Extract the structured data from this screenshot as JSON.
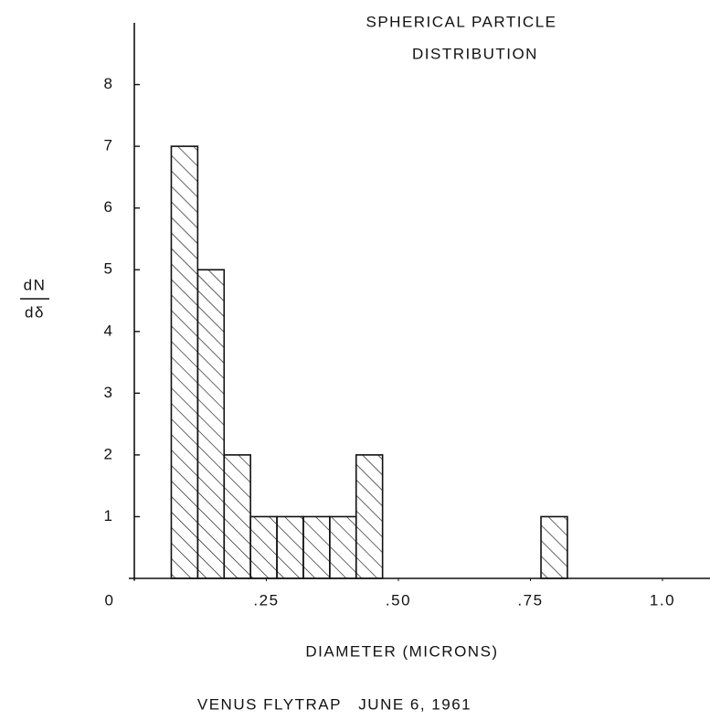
{
  "chart_data": {
    "type": "histogram",
    "title": [
      "SPHERICAL PARTICLE",
      "DISTRIBUTION"
    ],
    "ylabel": {
      "numerator": "dN",
      "denominator": "dδ"
    },
    "xlabel": "DIAMETER (MICRONS)",
    "caption": "VENUS FLYTRAP   JUNE 6, 1961",
    "bins": [
      0.07,
      0.12,
      0.17,
      0.22,
      0.27,
      0.32,
      0.37,
      0.42,
      0.47,
      0.52,
      0.57,
      0.62,
      0.67,
      0.72,
      0.77,
      0.82
    ],
    "values": [
      7,
      5,
      2,
      1,
      1,
      1,
      1,
      2,
      0,
      0,
      0,
      0,
      0,
      0,
      1
    ],
    "color": "#111111",
    "xlim": [
      0,
      1.09
    ],
    "xticks": [
      0,
      {
        "value": 0.25,
        "label": ".25"
      },
      {
        "value": 0.5,
        "label": ".50"
      },
      {
        "value": 0.75,
        "label": ".75"
      },
      {
        "value": 1.0,
        "label": "1.0"
      }
    ],
    "ylim": [
      0,
      9
    ],
    "yticks": [
      1,
      2,
      3,
      4,
      5,
      6,
      7,
      8
    ],
    "grid": false
  }
}
